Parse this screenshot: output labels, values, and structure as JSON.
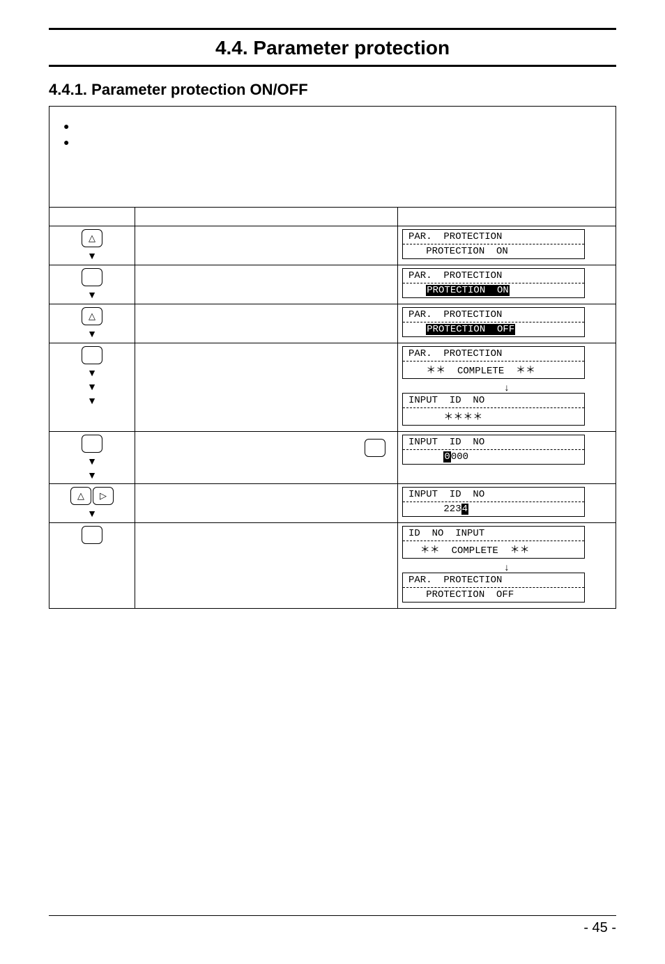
{
  "section_title": "4.4. Parameter protection",
  "subsection_title": "4.4.1. Parameter protection ON/OFF",
  "intro_bullets": [
    "",
    ""
  ],
  "table_headers": {
    "key": "",
    "desc": "",
    "disp": ""
  },
  "rows": [
    {
      "keys": [
        {
          "glyph": "△"
        }
      ],
      "arrows": 1,
      "lcd": [
        {
          "line1": "PAR.  PROTECTION",
          "line2": "   PROTECTION  ON"
        }
      ]
    },
    {
      "keys": [
        {
          "glyph": ""
        }
      ],
      "arrows": 1,
      "lcd": [
        {
          "line1": "PAR.  PROTECTION",
          "line2_pre": "   ",
          "line2_inv": "PROTECTION  ON"
        }
      ]
    },
    {
      "keys": [
        {
          "glyph": "△"
        }
      ],
      "arrows": 1,
      "lcd": [
        {
          "line1": "PAR.  PROTECTION",
          "line2_pre": "   ",
          "line2_inv": "PROTECTION  OFF"
        }
      ]
    },
    {
      "keys": [
        {
          "glyph": ""
        }
      ],
      "arrows": 3,
      "lcd": [
        {
          "line1": "PAR.  PROTECTION",
          "line2": "   ＊＊  COMPLETE  ＊＊"
        },
        {
          "center": "↓"
        },
        {
          "line1": "INPUT  ID  NO",
          "line2": "      ＊＊＊＊"
        }
      ]
    },
    {
      "keys": [
        {
          "glyph": ""
        }
      ],
      "arrows": 2,
      "extra_key": {
        "glyph": ""
      },
      "lcd": [
        {
          "line1": "INPUT  ID  NO",
          "line2_pre": "      ",
          "line2_inv": "0",
          "line2_post": "000"
        }
      ]
    },
    {
      "keys": [
        {
          "glyph": "△"
        },
        {
          "glyph": "▷"
        }
      ],
      "arrows": 1,
      "lcd": [
        {
          "line1": "INPUT  ID  NO",
          "line2_pre": "      223",
          "line2_inv": "4"
        }
      ]
    },
    {
      "keys": [
        {
          "glyph": ""
        }
      ],
      "arrows": 0,
      "lcd": [
        {
          "line1": "ID  NO  INPUT",
          "line2": "  ＊＊  COMPLETE  ＊＊"
        },
        {
          "center": "↓"
        },
        {
          "line1": "PAR.  PROTECTION",
          "line2": "   PROTECTION  OFF"
        }
      ]
    }
  ],
  "page_number": "- 45 -"
}
